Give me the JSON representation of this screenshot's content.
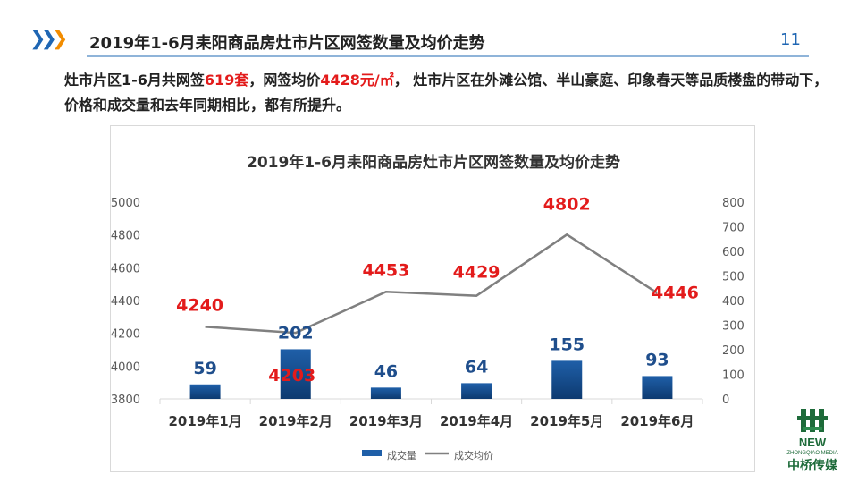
{
  "header": {
    "title": "2019年1-6月耒阳商品房灶市片区网签数量及均价走势",
    "page_number": "11",
    "accent_colors": [
      "#1f66b3",
      "#f28c00"
    ]
  },
  "summary": {
    "part1": "灶市片区1-6月共网签",
    "sets": "619套",
    "part2": "，网签均价",
    "avg_price": "4428元/㎡",
    "part3": "， 灶市片区在外滩公馆、半山豪庭、印象春天等品质楼盘的带动下，价格和成交量和去年同期相比，都有所提升。"
  },
  "chart_data": {
    "type": "bar",
    "title": "2019年1-6月耒阳商品房灶市片区网签数量及均价走势",
    "categories": [
      "2019年1月",
      "2019年2月",
      "2019年3月",
      "2019年4月",
      "2019年5月",
      "2019年6月"
    ],
    "series": [
      {
        "name": "成交量",
        "type": "bar",
        "axis": "right",
        "values": [
          59,
          202,
          46,
          64,
          155,
          93
        ],
        "color": "#1f5fa8"
      },
      {
        "name": "成交均价",
        "type": "line",
        "axis": "left",
        "values": [
          4240,
          4203,
          4453,
          4429,
          4802,
          4446
        ],
        "color": "#808080"
      }
    ],
    "y_left": {
      "ylim": [
        3800,
        5000
      ],
      "ticks": [
        "3800",
        "4000",
        "4200",
        "4400",
        "4600",
        "4800",
        "5000"
      ]
    },
    "y_right": {
      "ylim": [
        0,
        800
      ],
      "ticks": [
        "0",
        "100",
        "200",
        "300",
        "400",
        "500",
        "600",
        "700",
        "800"
      ]
    },
    "grid": false,
    "legend": "bottom"
  },
  "logo": {
    "text_top": "NEW",
    "text_sub": "ZHONGQIAO MEDIA",
    "text_cn": "中桥传媒"
  }
}
